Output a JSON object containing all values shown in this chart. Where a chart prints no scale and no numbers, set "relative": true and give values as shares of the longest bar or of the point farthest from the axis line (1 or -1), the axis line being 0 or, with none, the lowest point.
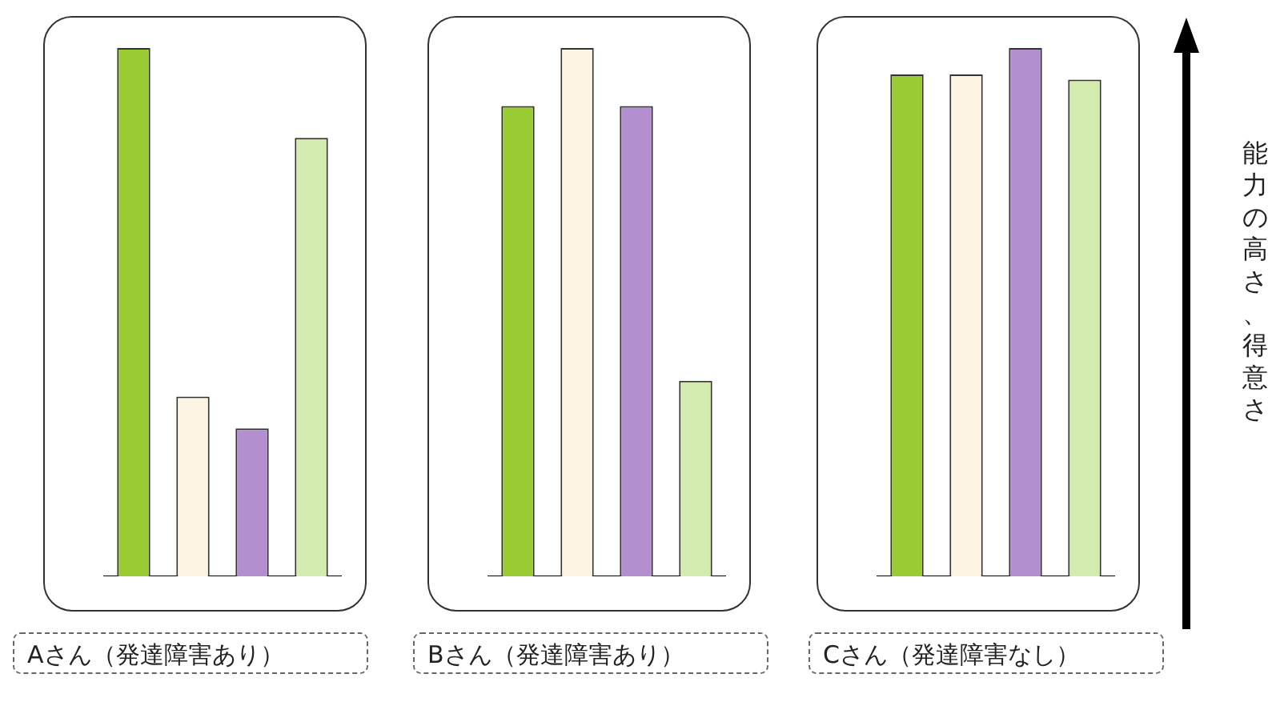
{
  "chart_data": [
    {
      "type": "bar",
      "relative": true,
      "categories": [
        null,
        null,
        null,
        null
      ],
      "values": [
        1,
        0.34,
        0.28,
        0.83
      ],
      "colors": [
        "#99cc33",
        "#fcf5e4",
        "#b48fd0",
        "#d4ebb0"
      ],
      "xlabel": "Aさん（発達障害あり）",
      "grid": false,
      "legend": false,
      "tick_labels": false
    },
    {
      "type": "bar",
      "relative": true,
      "categories": [
        null,
        null,
        null,
        null
      ],
      "values": [
        0.89,
        1,
        0.89,
        0.37
      ],
      "colors": [
        "#99cc33",
        "#fcf5e4",
        "#b48fd0",
        "#d4ebb0"
      ],
      "xlabel": "Bさん（発達障害あり）",
      "grid": false,
      "legend": false,
      "tick_labels": false
    },
    {
      "type": "bar",
      "relative": true,
      "categories": [
        null,
        null,
        null,
        null
      ],
      "values": [
        0.95,
        0.95,
        1,
        0.94
      ],
      "colors": [
        "#99cc33",
        "#fcf5e4",
        "#b48fd0",
        "#d4ebb0"
      ],
      "xlabel": "Cさん（発達障害なし）",
      "ylabel": "能力の高さ、得意さ",
      "grid": false,
      "legend": false,
      "tick_labels": false
    }
  ]
}
